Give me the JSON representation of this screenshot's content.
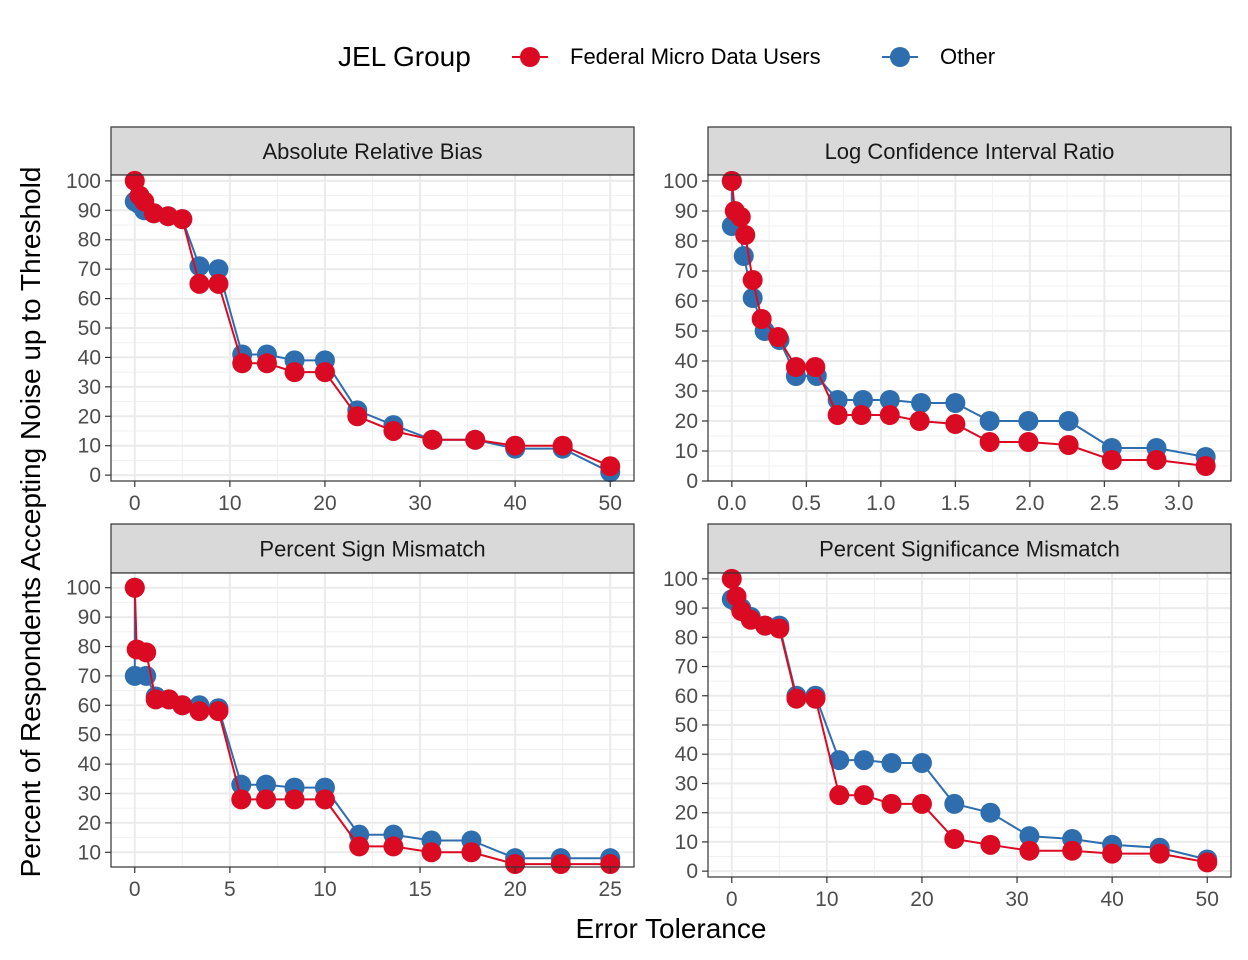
{
  "legend": {
    "title": "JEL Group",
    "entries": [
      {
        "name": "Federal Micro Data Users",
        "color": "#DA0A23"
      },
      {
        "name": "Other",
        "color": "#2F6EAE"
      }
    ]
  },
  "xlabel": "Error Tolerance",
  "ylabel": "Percent of Respondents Accepting Noise up to Threshold",
  "chart_data": [
    {
      "type": "line",
      "title": "Absolute Relative Bias",
      "xlim": [
        -2.5,
        52.5
      ],
      "ylim": [
        -2,
        102
      ],
      "xticks": [
        0,
        10,
        20,
        30,
        40,
        50
      ],
      "xtick_labels": [
        "0",
        "10",
        "20",
        "30",
        "40",
        "50"
      ],
      "yticks": [
        0,
        10,
        20,
        30,
        40,
        50,
        60,
        70,
        80,
        90,
        100
      ],
      "series": [
        {
          "name": "Other",
          "x": [
            0,
            0.5,
            1,
            2,
            3.5,
            5,
            6.8,
            8.8,
            11.3,
            13.9,
            16.8,
            20,
            23.4,
            27.2,
            31.3,
            35.8,
            40,
            45,
            50
          ],
          "y": [
            93,
            92,
            90,
            89,
            88,
            87,
            71,
            70,
            41,
            41,
            39,
            39,
            22,
            17,
            12,
            12,
            9,
            9,
            1
          ]
        },
        {
          "name": "Federal Micro Data Users",
          "x": [
            0,
            0.5,
            1,
            2,
            3.5,
            5,
            6.8,
            8.8,
            11.3,
            13.9,
            16.8,
            20,
            23.4,
            27.2,
            31.3,
            35.8,
            40,
            45,
            50
          ],
          "y": [
            100,
            95,
            93,
            89,
            88,
            87,
            65,
            65,
            38,
            38,
            35,
            35,
            20,
            15,
            12,
            12,
            10,
            10,
            3
          ]
        }
      ]
    },
    {
      "type": "line",
      "title": "Log Confidence Interval Ratio",
      "xlim": [
        -0.16,
        3.35
      ],
      "ylim": [
        0,
        102
      ],
      "xticks": [
        0,
        0.5,
        1,
        1.5,
        2,
        2.5,
        3
      ],
      "xtick_labels": [
        "0.0",
        "0.5",
        "1.0",
        "1.5",
        "2.0",
        "2.5",
        "3.0"
      ],
      "yticks": [
        0,
        10,
        20,
        30,
        40,
        50,
        60,
        70,
        80,
        90,
        100
      ],
      "series": [
        {
          "name": "Other",
          "x": [
            0,
            0,
            0.04,
            0.08,
            0.14,
            0.22,
            0.32,
            0.43,
            0.57,
            0.71,
            0.88,
            1.06,
            1.27,
            1.5,
            1.73,
            1.99,
            2.26,
            2.55,
            2.85,
            3.18
          ],
          "y": [
            100,
            85,
            88,
            75,
            61,
            50,
            47,
            35,
            35,
            27,
            27,
            27,
            26,
            26,
            20,
            20,
            20,
            11,
            11,
            8
          ]
        },
        {
          "name": "Federal Micro Data Users",
          "x": [
            0,
            0.02,
            0.06,
            0.09,
            0.14,
            0.2,
            0.31,
            0.43,
            0.56,
            0.71,
            0.87,
            1.06,
            1.26,
            1.5,
            1.73,
            1.99,
            2.26,
            2.55,
            2.85,
            3.18
          ],
          "y": [
            100,
            90,
            88,
            82,
            67,
            54,
            48,
            38,
            38,
            22,
            22,
            22,
            20,
            19,
            13,
            13,
            12,
            7,
            7,
            5
          ]
        }
      ]
    },
    {
      "type": "line",
      "title": "Percent Sign Mismatch",
      "xlim": [
        -1.25,
        26.25
      ],
      "ylim": [
        5,
        105
      ],
      "xticks": [
        0,
        5,
        10,
        15,
        20,
        25
      ],
      "xtick_labels": [
        "0",
        "5",
        "10",
        "15",
        "20",
        "25"
      ],
      "yticks": [
        10,
        20,
        30,
        40,
        50,
        60,
        70,
        80,
        90,
        100
      ],
      "series": [
        {
          "name": "Other",
          "x": [
            0,
            0,
            0.6,
            1.1,
            1.8,
            2.5,
            3.4,
            4.4,
            5.6,
            6.9,
            8.4,
            10,
            11.8,
            13.6,
            15.6,
            17.7,
            20,
            22.4,
            25
          ],
          "y": [
            100,
            70,
            70,
            63,
            62,
            60,
            60,
            59,
            33,
            33,
            32,
            32,
            16,
            16,
            14,
            14,
            8,
            8,
            8
          ]
        },
        {
          "name": "Federal Micro Data Users",
          "x": [
            0,
            0.1,
            0.6,
            1.1,
            1.8,
            2.5,
            3.4,
            4.4,
            5.6,
            6.9,
            8.4,
            10,
            11.8,
            13.6,
            15.6,
            17.7,
            20,
            22.4,
            25
          ],
          "y": [
            100,
            79,
            78,
            62,
            62,
            60,
            58,
            58,
            28,
            28,
            28,
            28,
            12,
            12,
            10,
            10,
            6,
            6,
            6
          ]
        }
      ]
    },
    {
      "type": "line",
      "title": "Percent Significance Mismatch",
      "xlim": [
        -2.5,
        52.5
      ],
      "ylim": [
        -2,
        102
      ],
      "xticks": [
        0,
        10,
        20,
        30,
        40,
        50
      ],
      "xtick_labels": [
        "0",
        "10",
        "20",
        "30",
        "40",
        "50"
      ],
      "yticks": [
        0,
        10,
        20,
        30,
        40,
        50,
        60,
        70,
        80,
        90,
        100
      ],
      "series": [
        {
          "name": "Other",
          "x": [
            0,
            0.5,
            1,
            2,
            3.5,
            5,
            6.8,
            8.8,
            11.3,
            13.9,
            16.8,
            20,
            23.4,
            27.2,
            31.3,
            35.8,
            40,
            45,
            50
          ],
          "y": [
            93,
            92,
            90,
            87,
            84,
            84,
            60,
            60,
            38,
            38,
            37,
            37,
            23,
            20,
            12,
            11,
            9,
            8,
            4
          ]
        },
        {
          "name": "Federal Micro Data Users",
          "x": [
            0,
            0.5,
            1,
            2,
            3.5,
            5,
            6.8,
            8.8,
            11.3,
            13.9,
            16.8,
            20,
            23.4,
            27.2,
            31.3,
            35.8,
            40,
            45,
            50
          ],
          "y": [
            100,
            94,
            89,
            86,
            84,
            83,
            59,
            59,
            26,
            26,
            23,
            23,
            11,
            9,
            7,
            7,
            6,
            6,
            3
          ]
        }
      ]
    }
  ]
}
